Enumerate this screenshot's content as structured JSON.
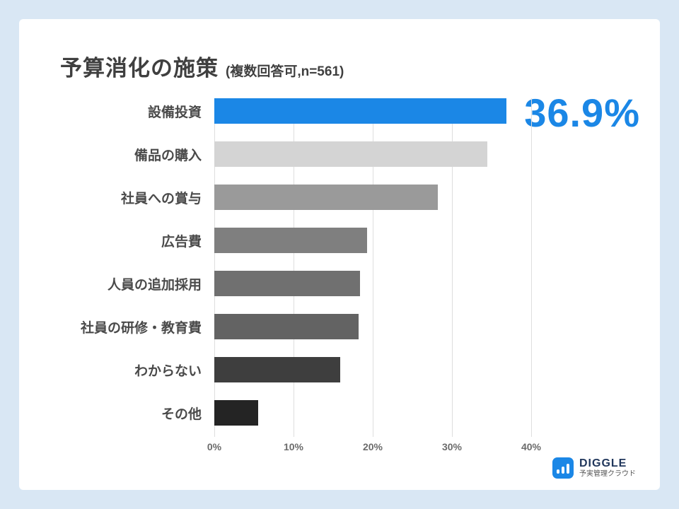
{
  "page": {
    "background_color": "#d9e7f4",
    "card_color": "#ffffff"
  },
  "header": {
    "title": "予算消化の施策",
    "subtitle": "(複数回答可,n=561)"
  },
  "highlight": {
    "value_label": "36.9%",
    "color": "#1b87e6"
  },
  "chart_data": {
    "type": "bar",
    "orientation": "horizontal",
    "title": "予算消化の施策 (複数回答可,n=561)",
    "categories": [
      "設備投資",
      "備品の購入",
      "社員への賞与",
      "広告費",
      "人員の追加採用",
      "社員の研修・教育費",
      "わからない",
      "その他"
    ],
    "values": [
      36.9,
      34.5,
      28.2,
      19.3,
      18.4,
      18.2,
      15.9,
      5.5
    ],
    "bar_colors": [
      "#1b87e6",
      "#d4d4d4",
      "#9a9a9a",
      "#7f7f7f",
      "#707070",
      "#636363",
      "#3e3e3e",
      "#242424"
    ],
    "xlim": [
      0,
      40
    ],
    "x_ticks": [
      0,
      10,
      20,
      30,
      40
    ],
    "x_tick_labels": [
      "0%",
      "10%",
      "20%",
      "30%",
      "40%"
    ],
    "grid": true,
    "xlabel": "",
    "ylabel": "",
    "legend": "none"
  },
  "footer_logo": {
    "brand": "DIGGLE",
    "tagline": "予実管理クラウド",
    "brand_color": "#21375c",
    "icon_color": "#1b87e6"
  }
}
